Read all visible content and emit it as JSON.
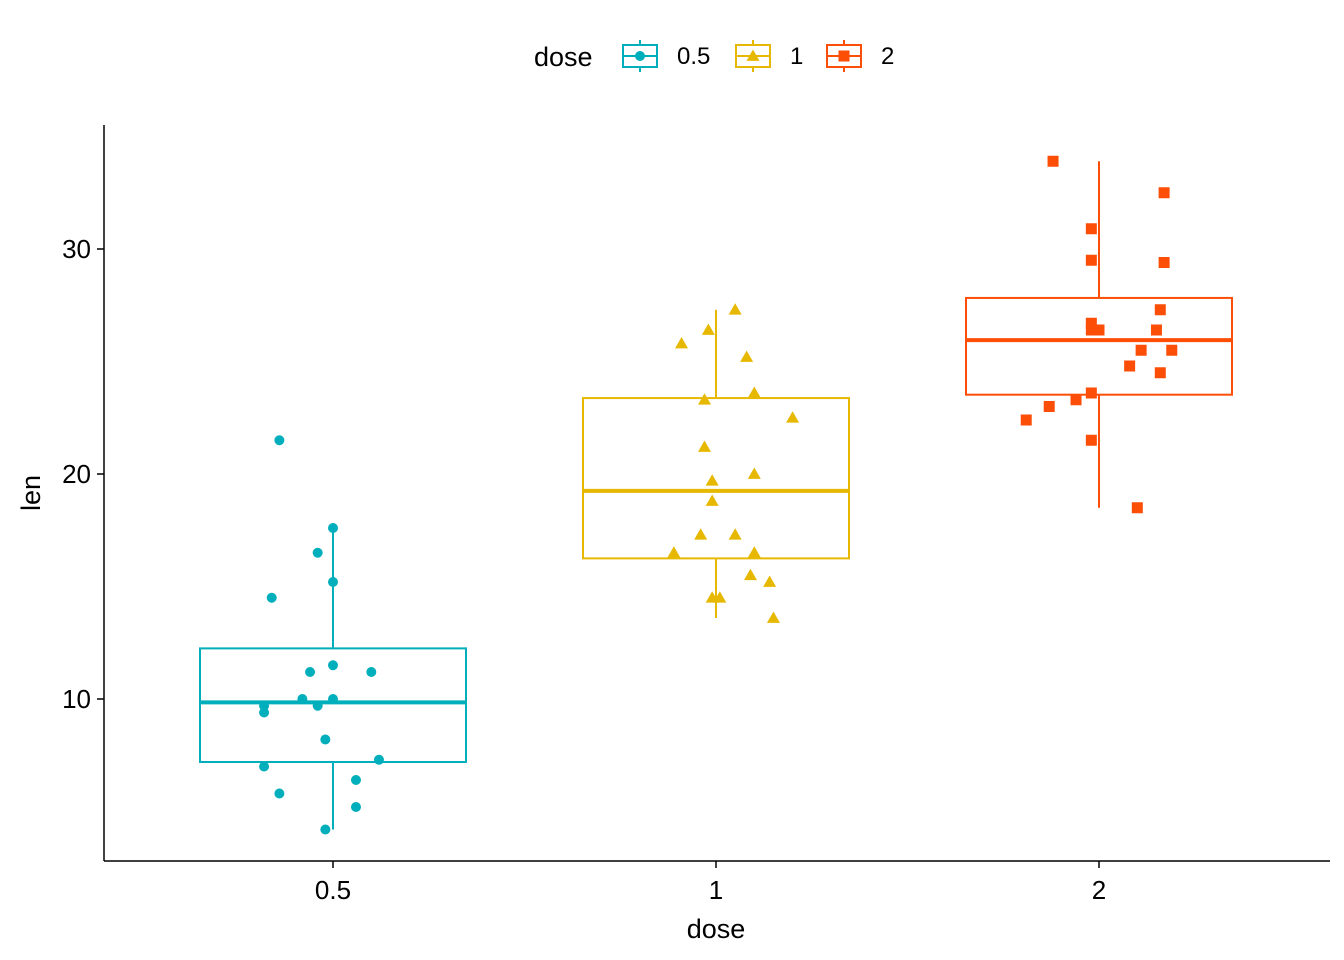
{
  "chart_data": {
    "type": "boxplot",
    "xlabel": "dose",
    "ylabel": "len",
    "categories": [
      "0.5",
      "1",
      "2"
    ],
    "ylim": [
      3.1,
      35.5
    ],
    "yticks": [
      10,
      20,
      30
    ],
    "grid": false,
    "legend": {
      "title": "dose",
      "position": "top",
      "entries": [
        "0.5",
        "1",
        "2"
      ]
    },
    "series": [
      {
        "category": "0.5",
        "color": "#00AFBB",
        "shape": "circle",
        "box": {
          "whisker_low": 4.2,
          "q1": 7.2,
          "median": 9.85,
          "q3": 12.25,
          "whisker_high": 17.6
        },
        "points": [
          [
            0.43,
            21.5
          ],
          [
            0.5,
            17.6
          ],
          [
            0.48,
            16.5
          ],
          [
            0.5,
            15.2
          ],
          [
            0.42,
            14.5
          ],
          [
            0.5,
            11.5
          ],
          [
            0.47,
            11.2
          ],
          [
            0.55,
            11.2
          ],
          [
            0.46,
            10.0
          ],
          [
            0.5,
            10.0
          ],
          [
            0.48,
            9.7
          ],
          [
            0.41,
            9.7
          ],
          [
            0.41,
            9.4
          ],
          [
            0.49,
            8.2
          ],
          [
            0.56,
            7.3
          ],
          [
            0.41,
            7.0
          ],
          [
            0.53,
            6.4
          ],
          [
            0.43,
            5.8
          ],
          [
            0.53,
            5.2
          ],
          [
            0.49,
            4.2
          ]
        ]
      },
      {
        "category": "1",
        "color": "#E7B800",
        "shape": "triangle",
        "box": {
          "whisker_low": 13.6,
          "q1": 16.25,
          "median": 19.25,
          "q3": 23.375,
          "whisker_high": 27.3
        },
        "points": [
          [
            1.05,
            27.3
          ],
          [
            0.98,
            26.4
          ],
          [
            0.91,
            25.8
          ],
          [
            1.08,
            25.2
          ],
          [
            1.1,
            23.6
          ],
          [
            0.97,
            23.3
          ],
          [
            1.2,
            22.5
          ],
          [
            0.97,
            21.2
          ],
          [
            1.1,
            20.0
          ],
          [
            0.99,
            19.7
          ],
          [
            0.99,
            18.8
          ],
          [
            1.05,
            17.3
          ],
          [
            0.96,
            17.3
          ],
          [
            0.89,
            16.5
          ],
          [
            1.1,
            16.5
          ],
          [
            1.09,
            15.5
          ],
          [
            1.14,
            15.2
          ],
          [
            0.99,
            14.5
          ],
          [
            1.01,
            14.5
          ],
          [
            1.15,
            13.6
          ]
        ]
      },
      {
        "category": "2",
        "color": "#FC4E07",
        "shape": "square",
        "box": {
          "whisker_low": 18.5,
          "q1": 23.525,
          "median": 25.95,
          "q3": 27.825,
          "whisker_high": 33.9
        },
        "points": [
          [
            1.88,
            33.9
          ],
          [
            2.17,
            32.5
          ],
          [
            1.98,
            30.9
          ],
          [
            1.98,
            29.5
          ],
          [
            2.17,
            29.4
          ],
          [
            2.16,
            27.3
          ],
          [
            1.98,
            26.7
          ],
          [
            1.98,
            26.4
          ],
          [
            2.0,
            26.4
          ],
          [
            2.15,
            26.4
          ],
          [
            2.11,
            25.5
          ],
          [
            2.19,
            25.5
          ],
          [
            2.08,
            24.8
          ],
          [
            2.16,
            24.5
          ],
          [
            1.98,
            23.6
          ],
          [
            1.94,
            23.3
          ],
          [
            1.87,
            23.0
          ],
          [
            1.81,
            22.4
          ],
          [
            1.98,
            21.5
          ],
          [
            2.1,
            18.5
          ]
        ]
      }
    ]
  }
}
